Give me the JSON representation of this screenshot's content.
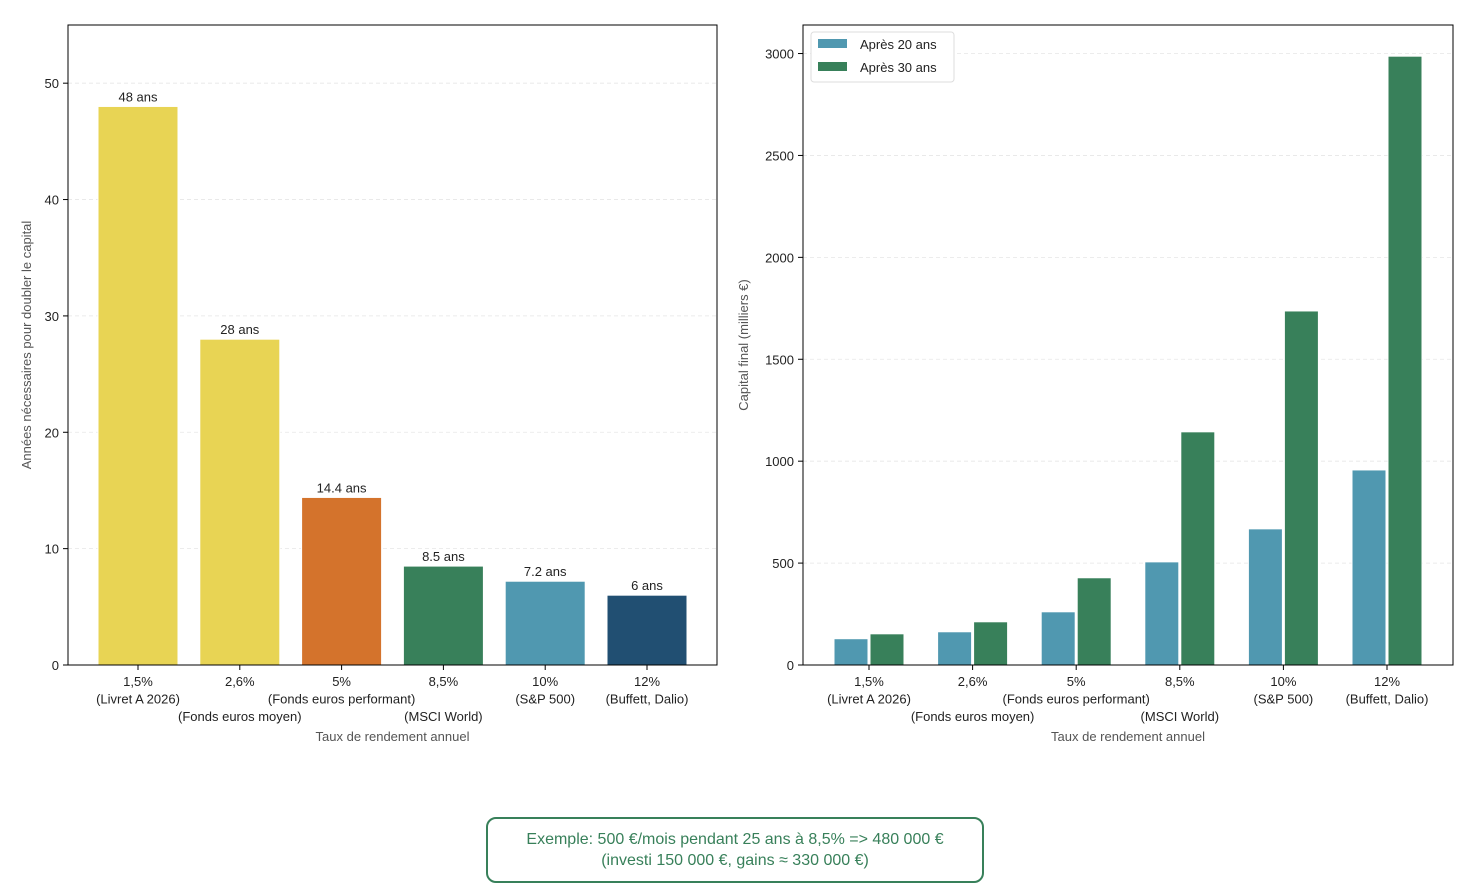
{
  "chart_data": [
    {
      "type": "bar",
      "categories": [
        "1,5%\n(Livret A 2026)",
        "2,6%\n\n(Fonds euros moyen)",
        "5%\n(Fonds euros performant)",
        "8,5%\n\n(MSCI World)",
        "10%\n(S&P 500)",
        "12%\n(Buffett, Dalio)"
      ],
      "values": [
        48,
        28,
        14.4,
        8.5,
        7.2,
        6
      ],
      "data_labels": [
        "48 ans",
        "28 ans",
        "14.4 ans",
        "8.5 ans",
        "7.2 ans",
        "6 ans"
      ],
      "colors": [
        "#E8D454",
        "#E8D454",
        "#D4732C",
        "#38805A",
        "#5098B0",
        "#214F72"
      ],
      "xlabel": "Taux de rendement annuel",
      "ylabel": "Années nécessaires pour doubler le capital",
      "ylim": [
        0,
        55
      ],
      "yticks": [
        0,
        10,
        20,
        30,
        40,
        50
      ],
      "grid": "y dashed"
    },
    {
      "type": "bar",
      "categories": [
        "1,5%\n(Livret A 2026)",
        "2,6%\n\n(Fonds euros moyen)",
        "5%\n(Fonds euros performant)",
        "8,5%\n\n(MSCI World)",
        "10%\n(S&P 500)",
        "12%\n(Buffett, Dalio)"
      ],
      "series": [
        {
          "name": "Après 20 ans",
          "values": [
            129,
            163,
            261,
            506,
            668,
            957
          ],
          "color": "#5098B0"
        },
        {
          "name": "Après 30 ans",
          "values": [
            153,
            212,
            428,
            1144,
            1737,
            2987
          ],
          "color": "#38805A"
        }
      ],
      "xlabel": "Taux de rendement annuel",
      "ylabel": "Capital final (milliers €)",
      "ylim": [
        0,
        3140
      ],
      "yticks": [
        0,
        500,
        1000,
        1500,
        2000,
        2500,
        3000
      ],
      "legend": "top-left",
      "grid": "y dashed"
    }
  ],
  "note": {
    "line1": "Exemple: 500 €/mois pendant 25 ans à 8,5% => 480 000 €",
    "line2": "(investi 150 000 €, gains ≈ 330 000 €)"
  }
}
